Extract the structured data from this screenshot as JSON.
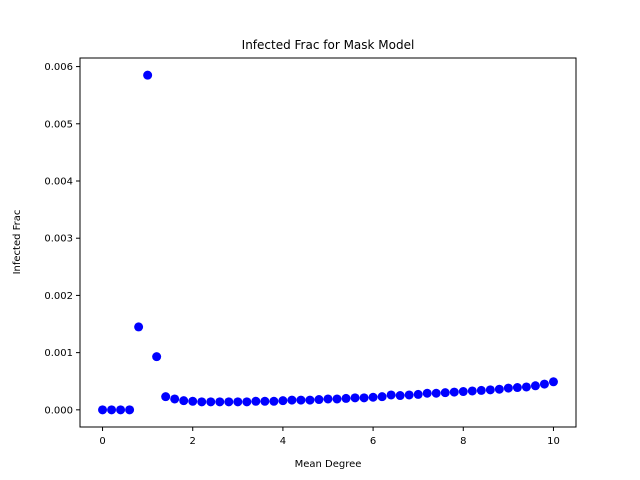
{
  "chart_data": {
    "type": "scatter",
    "title": "Infected Frac for Mask Model",
    "xlabel": "Mean Degree",
    "ylabel": "Infected Frac",
    "xlim": [
      -0.5,
      10.5
    ],
    "ylim": [
      -0.0003,
      0.00615
    ],
    "xticks": [
      0,
      2,
      4,
      6,
      8,
      10
    ],
    "xtick_labels": [
      "0",
      "2",
      "4",
      "6",
      "8",
      "10"
    ],
    "yticks": [
      0.0,
      0.001,
      0.002,
      0.003,
      0.004,
      0.005,
      0.006
    ],
    "ytick_labels": [
      "0.000",
      "0.001",
      "0.002",
      "0.003",
      "0.004",
      "0.005",
      "0.006"
    ],
    "grid": false,
    "marker_color": "#0000ff",
    "series": [
      {
        "x": [
          0.0,
          0.2,
          0.4,
          0.6,
          0.8,
          1.0,
          1.2,
          1.4,
          1.6,
          1.8,
          2.0,
          2.2,
          2.4,
          2.6,
          2.8,
          3.0,
          3.2,
          3.4,
          3.6,
          3.8,
          4.0,
          4.2,
          4.4,
          4.6,
          4.8,
          5.0,
          5.2,
          5.4,
          5.6,
          5.8,
          6.0,
          6.2,
          6.4,
          6.6,
          6.8,
          7.0,
          7.2,
          7.4,
          7.6,
          7.8,
          8.0,
          8.2,
          8.4,
          8.6,
          8.8,
          9.0,
          9.2,
          9.4,
          9.6,
          9.8,
          10.0
        ],
        "values": [
          0.0,
          0.0,
          0.0,
          0.0,
          0.00145,
          0.00585,
          0.00093,
          0.00023,
          0.00019,
          0.00016,
          0.00015,
          0.00014,
          0.00014,
          0.00014,
          0.00014,
          0.00014,
          0.00014,
          0.00015,
          0.00015,
          0.00015,
          0.00016,
          0.00017,
          0.00017,
          0.00017,
          0.00018,
          0.00019,
          0.00019,
          0.0002,
          0.00021,
          0.00021,
          0.00022,
          0.00023,
          0.00026,
          0.00025,
          0.00026,
          0.00027,
          0.00029,
          0.00029,
          0.0003,
          0.00031,
          0.00032,
          0.00033,
          0.00034,
          0.00035,
          0.00036,
          0.00038,
          0.00039,
          0.0004,
          0.00042,
          0.00045,
          0.00049
        ]
      }
    ]
  }
}
